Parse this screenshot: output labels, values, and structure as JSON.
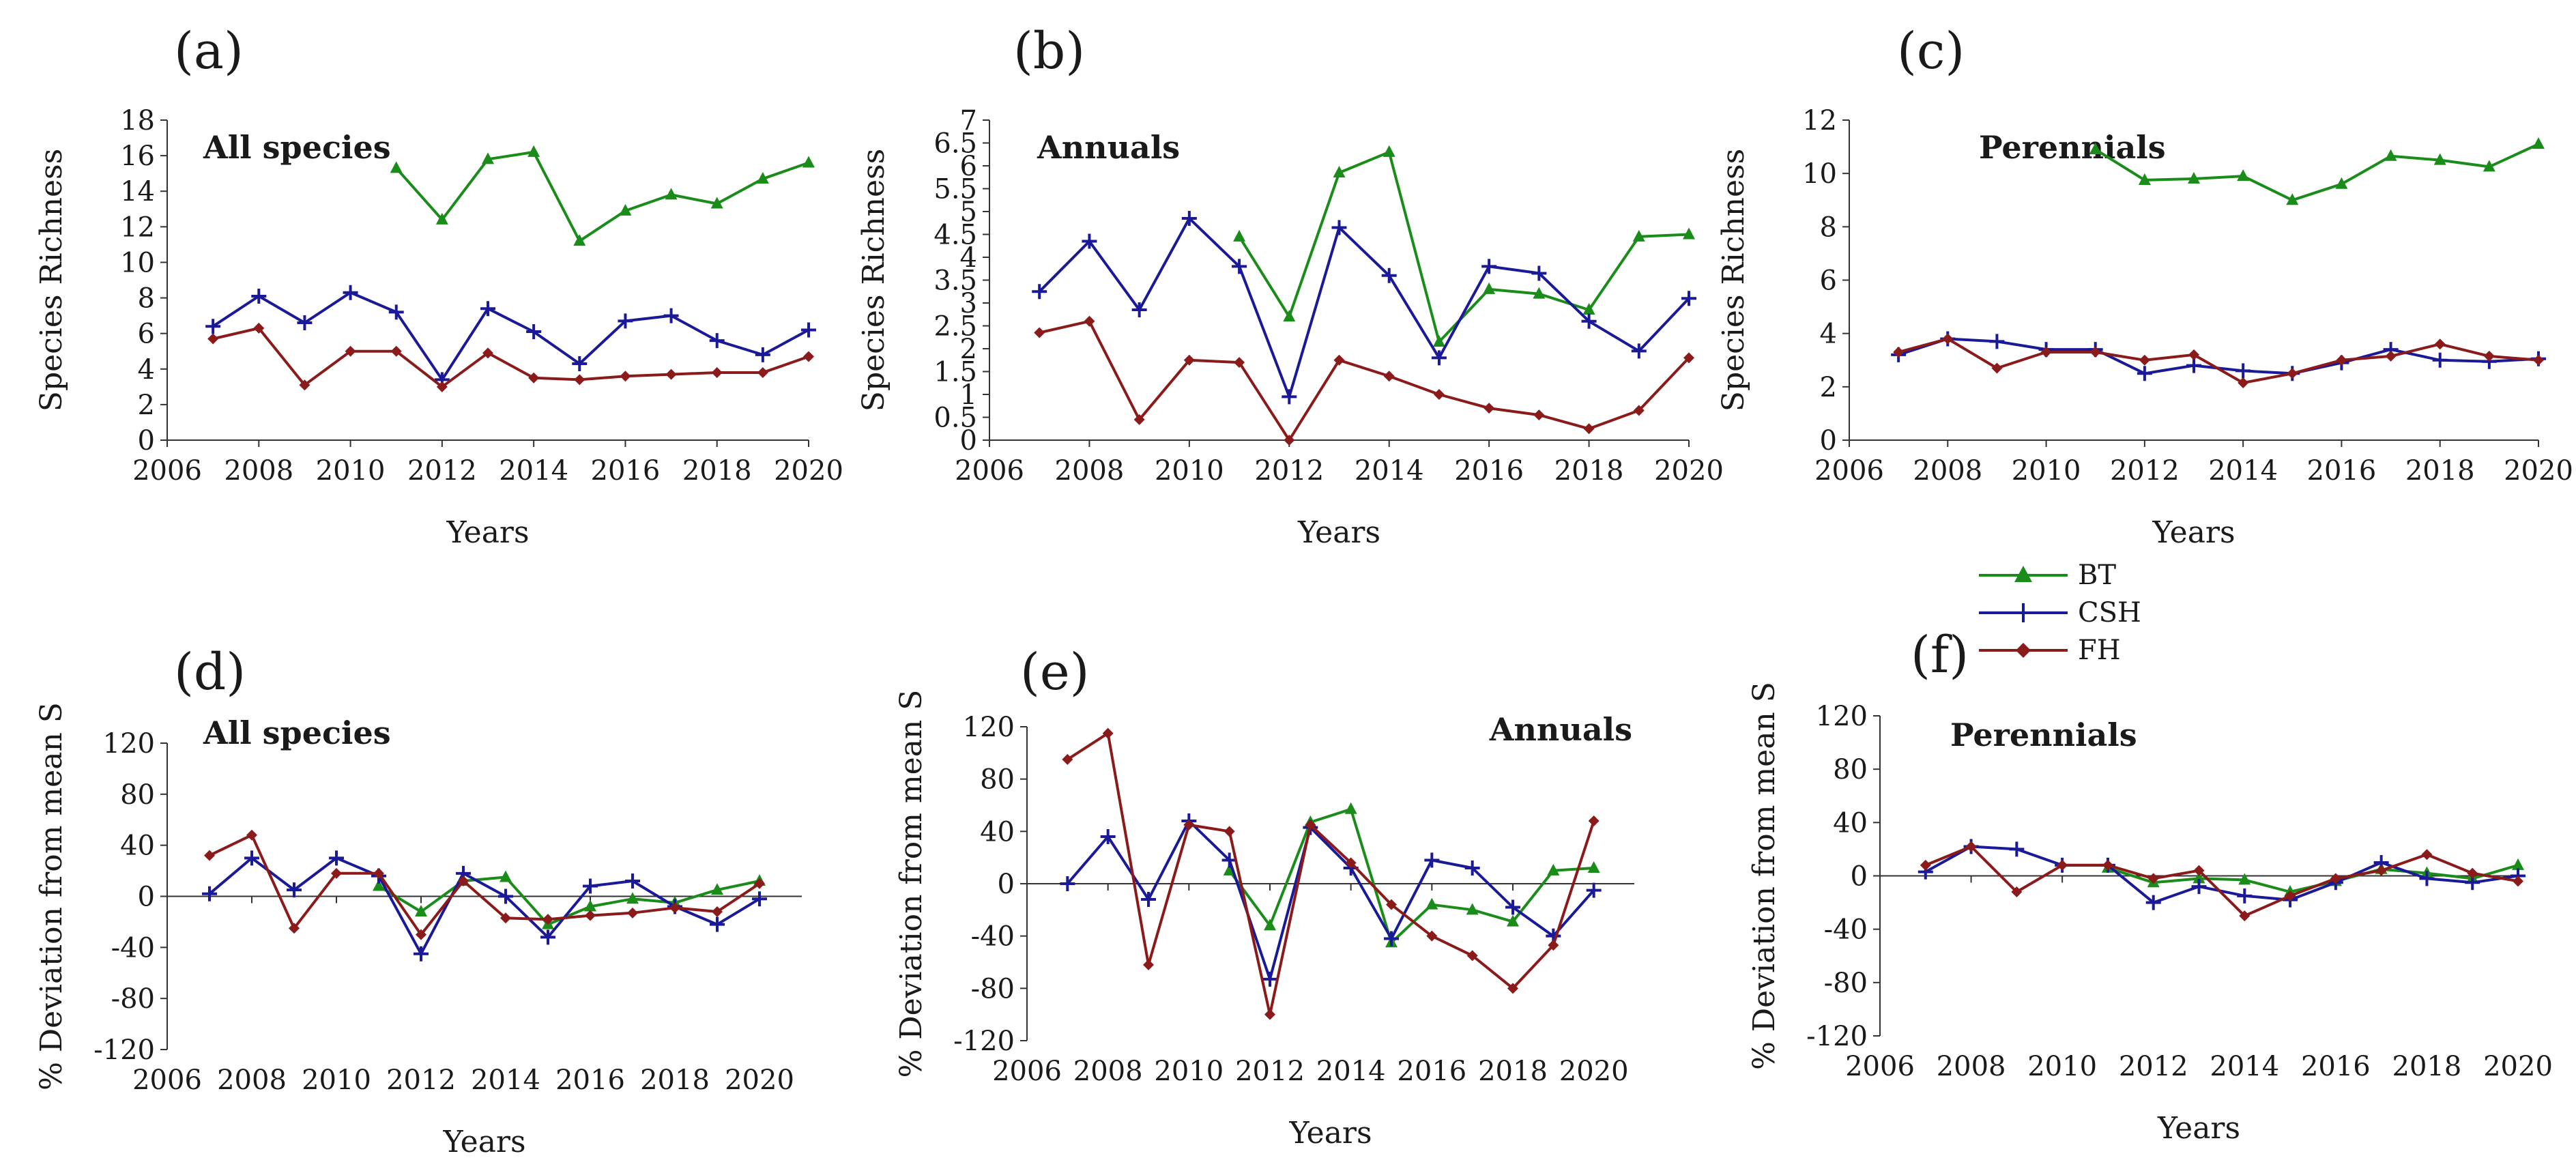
{
  "legend": [
    {
      "name": "BT",
      "color": "#1a8c1a",
      "marker": "triangle"
    },
    {
      "name": "CSH",
      "color": "#1a1a99",
      "marker": "plus"
    },
    {
      "name": "FH",
      "color": "#8b1a1a",
      "marker": "diamond"
    }
  ],
  "chart_data": [
    {
      "panel": "(a)",
      "type": "line",
      "annotation": "All species",
      "xlabel": "Years",
      "ylabel": "Species Richness",
      "xlim": [
        2006,
        2020
      ],
      "xticks": [
        "2006",
        "2008",
        "2010",
        "2012",
        "2014",
        "2016",
        "2018",
        "2020"
      ],
      "ylim": [
        0,
        18
      ],
      "yticks": [
        "0",
        "2",
        "4",
        "6",
        "8",
        "10",
        "12",
        "14",
        "16",
        "18"
      ],
      "series": [
        {
          "name": "BT",
          "x": [
            2011,
            2012,
            2013,
            2014,
            2015,
            2016,
            2017,
            2018,
            2019,
            2020
          ],
          "y": [
            15.3,
            12.4,
            15.8,
            16.2,
            11.2,
            12.9,
            13.8,
            13.3,
            14.7,
            15.6
          ]
        },
        {
          "name": "CSH",
          "x": [
            2007,
            2008,
            2009,
            2010,
            2011,
            2012,
            2013,
            2014,
            2015,
            2016,
            2017,
            2018,
            2019,
            2020
          ],
          "y": [
            6.4,
            8.1,
            6.6,
            8.3,
            7.2,
            3.4,
            7.4,
            6.1,
            4.3,
            6.7,
            7.0,
            5.6,
            4.8,
            6.2
          ]
        },
        {
          "name": "FH",
          "x": [
            2007,
            2008,
            2009,
            2010,
            2011,
            2012,
            2013,
            2014,
            2015,
            2016,
            2017,
            2018,
            2019,
            2020
          ],
          "y": [
            5.7,
            6.3,
            3.1,
            5.0,
            5.0,
            3.0,
            4.9,
            3.5,
            3.4,
            3.6,
            3.7,
            3.8,
            3.8,
            4.7
          ]
        }
      ]
    },
    {
      "panel": "(b)",
      "type": "line",
      "annotation": "Annuals",
      "xlabel": "Years",
      "ylabel": "Species Richness",
      "xlim": [
        2006,
        2020
      ],
      "xticks": [
        "2006",
        "2008",
        "2010",
        "2012",
        "2014",
        "2016",
        "2018",
        "2020"
      ],
      "ylim": [
        0,
        7
      ],
      "yticks": [
        "0",
        "0.5",
        "1",
        "1.5",
        "2",
        "2.5",
        "3",
        "3.5",
        "4",
        "4.5",
        "5",
        "5.5",
        "6",
        "6.5",
        "7"
      ],
      "series": [
        {
          "name": "BT",
          "x": [
            2011,
            2012,
            2013,
            2014,
            2015,
            2016,
            2017,
            2018,
            2019,
            2020
          ],
          "y": [
            4.45,
            2.7,
            5.85,
            6.3,
            2.15,
            3.3,
            3.2,
            2.85,
            4.45,
            4.5
          ]
        },
        {
          "name": "CSH",
          "x": [
            2007,
            2008,
            2009,
            2010,
            2011,
            2012,
            2013,
            2014,
            2015,
            2016,
            2017,
            2018,
            2019,
            2020
          ],
          "y": [
            3.25,
            4.35,
            2.85,
            4.85,
            3.8,
            0.95,
            4.65,
            3.6,
            1.8,
            3.8,
            3.65,
            2.6,
            1.95,
            3.1
          ]
        },
        {
          "name": "FH",
          "x": [
            2007,
            2008,
            2009,
            2010,
            2011,
            2012,
            2013,
            2014,
            2015,
            2016,
            2017,
            2018,
            2019,
            2020
          ],
          "y": [
            2.35,
            2.6,
            0.45,
            1.75,
            1.7,
            0.0,
            1.75,
            1.4,
            1.0,
            0.7,
            0.55,
            0.25,
            0.65,
            1.8
          ]
        }
      ]
    },
    {
      "panel": "(c)",
      "type": "line",
      "annotation": "Perennials",
      "xlabel": "Years",
      "ylabel": "Species Richness",
      "xlim": [
        2006,
        2020
      ],
      "xticks": [
        "2006",
        "2008",
        "2010",
        "2012",
        "2014",
        "2016",
        "2018",
        "2020"
      ],
      "ylim": [
        0,
        12
      ],
      "yticks": [
        "0",
        "2",
        "4",
        "6",
        "8",
        "10",
        "12"
      ],
      "series": [
        {
          "name": "BT",
          "x": [
            2011,
            2012,
            2013,
            2014,
            2015,
            2016,
            2017,
            2018,
            2019,
            2020
          ],
          "y": [
            10.9,
            9.75,
            9.8,
            9.9,
            9.0,
            9.6,
            10.65,
            10.5,
            10.25,
            11.1
          ]
        },
        {
          "name": "CSH",
          "x": [
            2007,
            2008,
            2009,
            2010,
            2011,
            2012,
            2013,
            2014,
            2015,
            2016,
            2017,
            2018,
            2019,
            2020
          ],
          "y": [
            3.2,
            3.8,
            3.7,
            3.4,
            3.4,
            2.5,
            2.8,
            2.6,
            2.5,
            2.9,
            3.4,
            3.0,
            2.95,
            3.05
          ]
        },
        {
          "name": "FH",
          "x": [
            2007,
            2008,
            2009,
            2010,
            2011,
            2012,
            2013,
            2014,
            2015,
            2016,
            2017,
            2018,
            2019,
            2020
          ],
          "y": [
            3.3,
            3.8,
            2.7,
            3.3,
            3.3,
            3.0,
            3.2,
            2.15,
            2.5,
            3.0,
            3.15,
            3.6,
            3.15,
            3.0
          ]
        }
      ]
    },
    {
      "panel": "(d)",
      "type": "line",
      "annotation": "All species",
      "xlabel": "Years",
      "ylabel": "% Deviation from mean S",
      "xlim": [
        2006,
        2021
      ],
      "xticks": [
        "2006",
        "2008",
        "2010",
        "2012",
        "2014",
        "2016",
        "2018",
        "2020"
      ],
      "ylim": [
        -120,
        120
      ],
      "yticks": [
        "-120",
        "-80",
        "-40",
        "0",
        "40",
        "80",
        "120"
      ],
      "series": [
        {
          "name": "BT",
          "x": [
            2011,
            2012,
            2013,
            2014,
            2015,
            2016,
            2017,
            2018,
            2019,
            2020
          ],
          "y": [
            8,
            -12,
            12,
            15,
            -22,
            -8,
            -2,
            -5,
            5,
            12
          ]
        },
        {
          "name": "CSH",
          "x": [
            2007,
            2008,
            2009,
            2010,
            2011,
            2012,
            2013,
            2014,
            2015,
            2016,
            2017,
            2018,
            2019,
            2020
          ],
          "y": [
            2,
            30,
            5,
            30,
            16,
            -45,
            18,
            0,
            -32,
            8,
            12,
            -8,
            -22,
            -2
          ]
        },
        {
          "name": "FH",
          "x": [
            2007,
            2008,
            2009,
            2010,
            2011,
            2012,
            2013,
            2014,
            2015,
            2016,
            2017,
            2018,
            2019,
            2020
          ],
          "y": [
            32,
            48,
            -25,
            18,
            18,
            -30,
            12,
            -17,
            -18,
            -15,
            -13,
            -9,
            -12,
            10
          ]
        }
      ]
    },
    {
      "panel": "(e)",
      "type": "line",
      "annotation": "Annuals",
      "xlabel": "Years",
      "ylabel": "% Deviation from mean S",
      "xlim": [
        2006,
        2021
      ],
      "xticks": [
        "2006",
        "2008",
        "2010",
        "2012",
        "2014",
        "2016",
        "2018",
        "2020"
      ],
      "ylim": [
        -120,
        120
      ],
      "yticks": [
        "-120",
        "-80",
        "-40",
        "0",
        "40",
        "80",
        "120"
      ],
      "series": [
        {
          "name": "BT",
          "x": [
            2011,
            2012,
            2013,
            2014,
            2015,
            2016,
            2017,
            2018,
            2019,
            2020
          ],
          "y": [
            10,
            -32,
            47,
            57,
            -45,
            -16,
            -20,
            -29,
            10,
            12
          ]
        },
        {
          "name": "CSH",
          "x": [
            2007,
            2008,
            2009,
            2010,
            2011,
            2012,
            2013,
            2014,
            2015,
            2016,
            2017,
            2018,
            2019,
            2020
          ],
          "y": [
            0,
            36,
            -12,
            48,
            18,
            -73,
            43,
            12,
            -42,
            18,
            12,
            -18,
            -40,
            -5
          ]
        },
        {
          "name": "FH",
          "x": [
            2007,
            2008,
            2009,
            2010,
            2011,
            2012,
            2013,
            2014,
            2015,
            2016,
            2017,
            2018,
            2019,
            2020
          ],
          "y": [
            95,
            115,
            -62,
            45,
            40,
            -100,
            45,
            16,
            -16,
            -40,
            -55,
            -80,
            -47,
            48
          ]
        }
      ]
    },
    {
      "panel": "(f)",
      "type": "line",
      "annotation": "Perennials",
      "xlabel": "Years",
      "ylabel": "% Deviation from mean S",
      "xlim": [
        2006,
        2020
      ],
      "xticks": [
        "2006",
        "2008",
        "2010",
        "2012",
        "2014",
        "2016",
        "2018",
        "2020"
      ],
      "ylim": [
        -120,
        120
      ],
      "yticks": [
        "-120",
        "-80",
        "-40",
        "0",
        "40",
        "80",
        "120"
      ],
      "series": [
        {
          "name": "BT",
          "x": [
            2011,
            2012,
            2013,
            2014,
            2015,
            2016,
            2017,
            2018,
            2019,
            2020
          ],
          "y": [
            6,
            -5,
            -2,
            -3,
            -12,
            -4,
            5,
            2,
            -2,
            8
          ]
        },
        {
          "name": "CSH",
          "x": [
            2007,
            2008,
            2009,
            2010,
            2011,
            2012,
            2013,
            2014,
            2015,
            2016,
            2017,
            2018,
            2019,
            2020
          ],
          "y": [
            3,
            22,
            20,
            8,
            8,
            -20,
            -8,
            -15,
            -18,
            -5,
            10,
            -2,
            -5,
            0
          ]
        },
        {
          "name": "FH",
          "x": [
            2007,
            2008,
            2009,
            2010,
            2011,
            2012,
            2013,
            2014,
            2015,
            2016,
            2017,
            2018,
            2019,
            2020
          ],
          "y": [
            8,
            22,
            -12,
            8,
            8,
            -2,
            4,
            -30,
            -15,
            -2,
            4,
            16,
            2,
            -4
          ]
        }
      ]
    }
  ]
}
